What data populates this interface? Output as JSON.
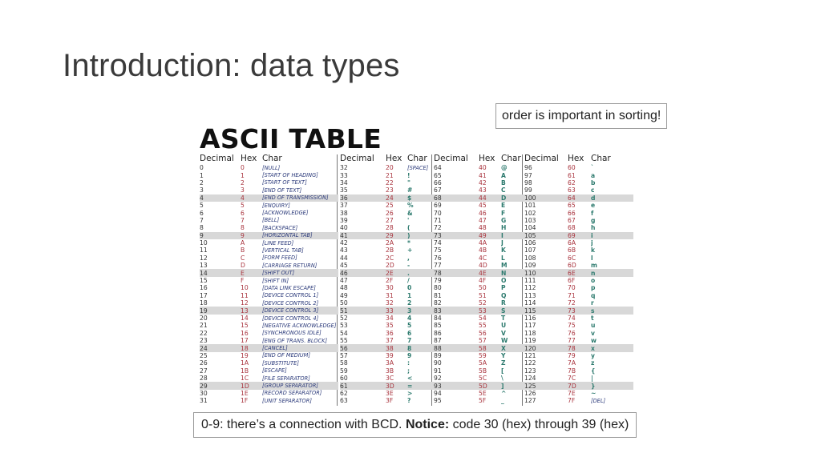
{
  "slide": {
    "title": "Introduction: data types",
    "callout_top": "order is important in sorting!",
    "callout_bottom": {
      "prefix": "0-9: there’s a connection with BCD. ",
      "notice_label": "Notice:",
      "suffix": " code 30 (hex) through 39 (hex)"
    }
  },
  "ascii_table": {
    "heading": "ASCII TABLE",
    "headers": [
      "Decimal",
      "Hex",
      "Char"
    ],
    "highlight_rows": [
      4,
      9,
      14,
      19,
      24,
      29
    ],
    "blocks": [
      [
        [
          "0",
          "0",
          "[NULL]"
        ],
        [
          "1",
          "1",
          "[START OF HEADING]"
        ],
        [
          "2",
          "2",
          "[START OF TEXT]"
        ],
        [
          "3",
          "3",
          "[END OF TEXT]"
        ],
        [
          "4",
          "4",
          "[END OF TRANSMISSION]"
        ],
        [
          "5",
          "5",
          "[ENQUIRY]"
        ],
        [
          "6",
          "6",
          "[ACKNOWLEDGE]"
        ],
        [
          "7",
          "7",
          "[BELL]"
        ],
        [
          "8",
          "8",
          "[BACKSPACE]"
        ],
        [
          "9",
          "9",
          "[HORIZONTAL TAB]"
        ],
        [
          "10",
          "A",
          "[LINE FEED]"
        ],
        [
          "11",
          "B",
          "[VERTICAL TAB]"
        ],
        [
          "12",
          "C",
          "[FORM FEED]"
        ],
        [
          "13",
          "D",
          "[CARRIAGE RETURN]"
        ],
        [
          "14",
          "E",
          "[SHIFT OUT]"
        ],
        [
          "15",
          "F",
          "[SHIFT IN]"
        ],
        [
          "16",
          "10",
          "[DATA LINK ESCAPE]"
        ],
        [
          "17",
          "11",
          "[DEVICE CONTROL 1]"
        ],
        [
          "18",
          "12",
          "[DEVICE CONTROL 2]"
        ],
        [
          "19",
          "13",
          "[DEVICE CONTROL 3]"
        ],
        [
          "20",
          "14",
          "[DEVICE CONTROL 4]"
        ],
        [
          "21",
          "15",
          "[NEGATIVE ACKNOWLEDGE]"
        ],
        [
          "22",
          "16",
          "[SYNCHRONOUS IDLE]"
        ],
        [
          "23",
          "17",
          "[ENG OF TRANS. BLOCK]"
        ],
        [
          "24",
          "18",
          "[CANCEL]"
        ],
        [
          "25",
          "19",
          "[END OF MEDIUM]"
        ],
        [
          "26",
          "1A",
          "[SUBSTITUTE]"
        ],
        [
          "27",
          "1B",
          "[ESCAPE]"
        ],
        [
          "28",
          "1C",
          "[FILE SEPARATOR]"
        ],
        [
          "29",
          "1D",
          "[GROUP SEPARATOR]"
        ],
        [
          "30",
          "1E",
          "[RECORD SEPARATOR]"
        ],
        [
          "31",
          "1F",
          "[UNIT SEPARATOR]"
        ]
      ],
      [
        [
          "32",
          "20",
          "[SPACE]"
        ],
        [
          "33",
          "21",
          "!"
        ],
        [
          "34",
          "22",
          "\""
        ],
        [
          "35",
          "23",
          "#"
        ],
        [
          "36",
          "24",
          "$"
        ],
        [
          "37",
          "25",
          "%"
        ],
        [
          "38",
          "26",
          "&"
        ],
        [
          "39",
          "27",
          "'"
        ],
        [
          "40",
          "28",
          "("
        ],
        [
          "41",
          "29",
          ")"
        ],
        [
          "42",
          "2A",
          "*"
        ],
        [
          "43",
          "2B",
          "+"
        ],
        [
          "44",
          "2C",
          ","
        ],
        [
          "45",
          "2D",
          "-"
        ],
        [
          "46",
          "2E",
          "."
        ],
        [
          "47",
          "2F",
          "/"
        ],
        [
          "48",
          "30",
          "0"
        ],
        [
          "49",
          "31",
          "1"
        ],
        [
          "50",
          "32",
          "2"
        ],
        [
          "51",
          "33",
          "3"
        ],
        [
          "52",
          "34",
          "4"
        ],
        [
          "53",
          "35",
          "5"
        ],
        [
          "54",
          "36",
          "6"
        ],
        [
          "55",
          "37",
          "7"
        ],
        [
          "56",
          "38",
          "8"
        ],
        [
          "57",
          "39",
          "9"
        ],
        [
          "58",
          "3A",
          ":"
        ],
        [
          "59",
          "3B",
          ";"
        ],
        [
          "60",
          "3C",
          "<"
        ],
        [
          "61",
          "3D",
          "="
        ],
        [
          "62",
          "3E",
          ">"
        ],
        [
          "63",
          "3F",
          "?"
        ]
      ],
      [
        [
          "64",
          "40",
          "@"
        ],
        [
          "65",
          "41",
          "A"
        ],
        [
          "66",
          "42",
          "B"
        ],
        [
          "67",
          "43",
          "C"
        ],
        [
          "68",
          "44",
          "D"
        ],
        [
          "69",
          "45",
          "E"
        ],
        [
          "70",
          "46",
          "F"
        ],
        [
          "71",
          "47",
          "G"
        ],
        [
          "72",
          "48",
          "H"
        ],
        [
          "73",
          "49",
          "I"
        ],
        [
          "74",
          "4A",
          "J"
        ],
        [
          "75",
          "4B",
          "K"
        ],
        [
          "76",
          "4C",
          "L"
        ],
        [
          "77",
          "4D",
          "M"
        ],
        [
          "78",
          "4E",
          "N"
        ],
        [
          "79",
          "4F",
          "O"
        ],
        [
          "80",
          "50",
          "P"
        ],
        [
          "81",
          "51",
          "Q"
        ],
        [
          "82",
          "52",
          "R"
        ],
        [
          "83",
          "53",
          "S"
        ],
        [
          "84",
          "54",
          "T"
        ],
        [
          "85",
          "55",
          "U"
        ],
        [
          "86",
          "56",
          "V"
        ],
        [
          "87",
          "57",
          "W"
        ],
        [
          "88",
          "58",
          "X"
        ],
        [
          "89",
          "59",
          "Y"
        ],
        [
          "90",
          "5A",
          "Z"
        ],
        [
          "91",
          "5B",
          "["
        ],
        [
          "92",
          "5C",
          "\\"
        ],
        [
          "93",
          "5D",
          "]"
        ],
        [
          "94",
          "5E",
          "^"
        ],
        [
          "95",
          "5F",
          "_"
        ]
      ],
      [
        [
          "96",
          "60",
          "`"
        ],
        [
          "97",
          "61",
          "a"
        ],
        [
          "98",
          "62",
          "b"
        ],
        [
          "99",
          "63",
          "c"
        ],
        [
          "100",
          "64",
          "d"
        ],
        [
          "101",
          "65",
          "e"
        ],
        [
          "102",
          "66",
          "f"
        ],
        [
          "103",
          "67",
          "g"
        ],
        [
          "104",
          "68",
          "h"
        ],
        [
          "105",
          "69",
          "i"
        ],
        [
          "106",
          "6A",
          "j"
        ],
        [
          "107",
          "6B",
          "k"
        ],
        [
          "108",
          "6C",
          "l"
        ],
        [
          "109",
          "6D",
          "m"
        ],
        [
          "110",
          "6E",
          "n"
        ],
        [
          "111",
          "6F",
          "o"
        ],
        [
          "112",
          "70",
          "p"
        ],
        [
          "113",
          "71",
          "q"
        ],
        [
          "114",
          "72",
          "r"
        ],
        [
          "115",
          "73",
          "s"
        ],
        [
          "116",
          "74",
          "t"
        ],
        [
          "117",
          "75",
          "u"
        ],
        [
          "118",
          "76",
          "v"
        ],
        [
          "119",
          "77",
          "w"
        ],
        [
          "120",
          "78",
          "x"
        ],
        [
          "121",
          "79",
          "y"
        ],
        [
          "122",
          "7A",
          "z"
        ],
        [
          "123",
          "7B",
          "{"
        ],
        [
          "124",
          "7C",
          "|"
        ],
        [
          "125",
          "7D",
          "}"
        ],
        [
          "126",
          "7E",
          "~"
        ],
        [
          "127",
          "7F",
          "[DEL]"
        ]
      ]
    ]
  }
}
